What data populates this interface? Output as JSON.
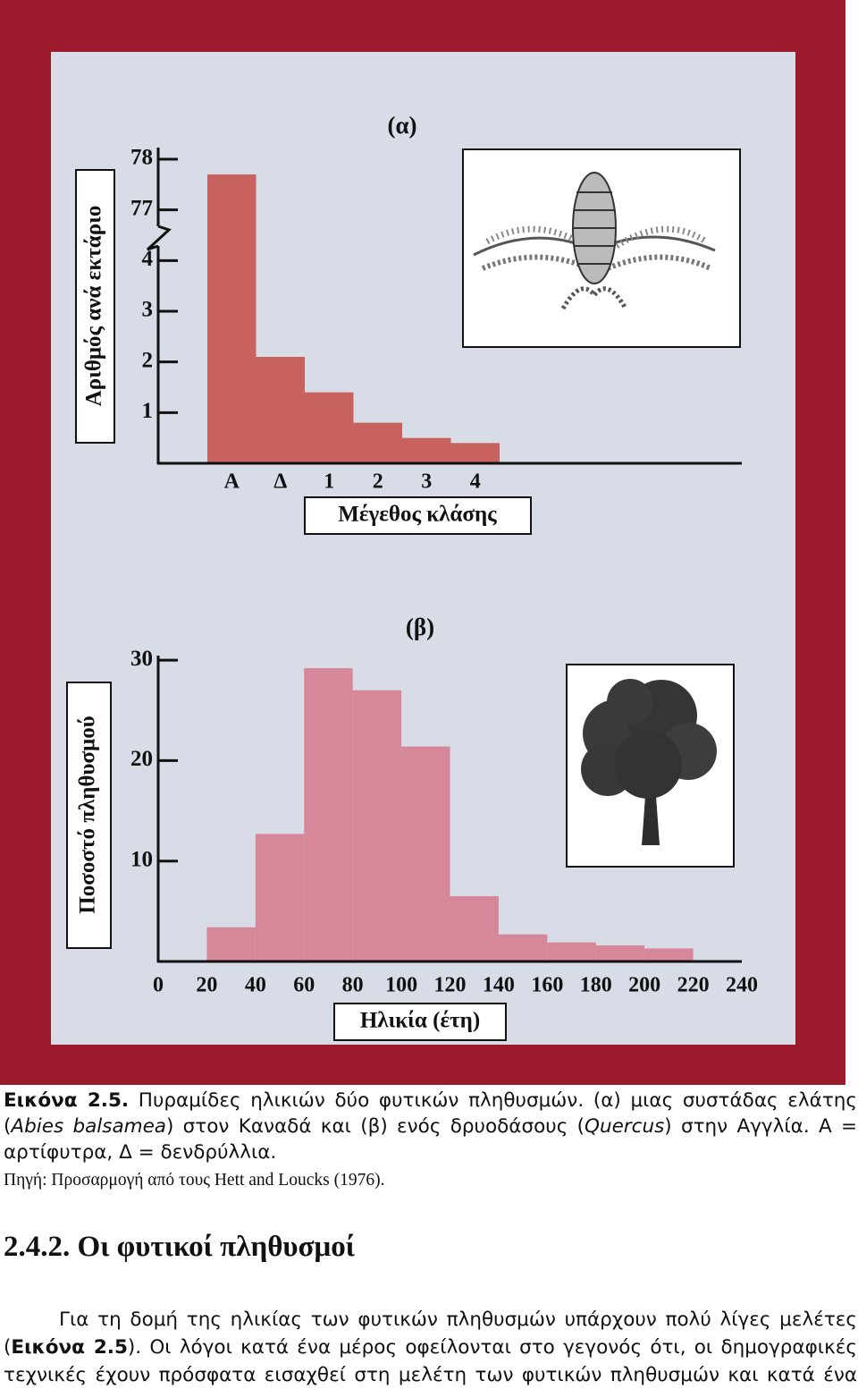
{
  "chart_data": [
    {
      "type": "bar",
      "title": "(α)",
      "y_label": "Αριθμός ανά εκτάριο",
      "x_label": "Μέγεθος κλάσης",
      "categories": [
        "Α",
        "Δ",
        "1",
        "2",
        "3",
        "4"
      ],
      "values": [
        77.7,
        2.1,
        1.4,
        0.8,
        0.5,
        0.4
      ],
      "color": "#c8625f",
      "ylim": [
        0,
        78
      ],
      "yticks": [
        1,
        2,
        3,
        4,
        77,
        78
      ],
      "axis_break": true,
      "grid": false
    },
    {
      "type": "histogram",
      "title": "(β)",
      "y_label": "Ποσοστό πληθυσμού",
      "x_label": "Ηλικία (έτη)",
      "bins": [
        20,
        40,
        60,
        80,
        100,
        120,
        140,
        160,
        180,
        200,
        220
      ],
      "values": [
        3.4,
        12.7,
        29.2,
        27.0,
        21.4,
        6.5,
        2.7,
        1.9,
        1.6,
        1.3
      ],
      "color": "#d6879a",
      "xlim": [
        0,
        240
      ],
      "xticks": [
        0,
        20,
        40,
        60,
        80,
        100,
        120,
        140,
        160,
        180,
        200,
        220,
        240
      ],
      "ylim": [
        0,
        30.5
      ],
      "yticks": [
        10,
        20,
        30
      ],
      "grid": false
    }
  ],
  "caption": {
    "label": "Εικόνα 2.5.",
    "text": [
      " Πυραμίδες ηλικιών δύο φυτικών πληθυσμών. (α) μιας συστάδας ελάτης (",
      "Abies balsamea",
      ") στον Καναδά και (β) ενός δρυοδάσους (",
      "Quercus",
      ") στην Αγγλία. Α = αρτίφυτρα, Δ = δενδρύλλια."
    ],
    "source": "Πηγή: Προσαρμογή από τους Hett and Loucks (1976)."
  },
  "section": {
    "heading": "2.4.2. Οι φυτικοί πληθυσμοί",
    "paragraph": [
      "Για τη δομή της ηλικίας των φυτικών πληθυσμών υπάρχουν πολύ λίγες μελέτες (",
      "Εικόνα 2.5",
      "). Οι λόγοι κατά ένα μέρος οφείλονται στο γεγονός ότι, οι δημογραφικές τεχνικές έχουν πρόσφατα εισαχθεί στη μελέτη των φυτικών πληθυσμών και κατά ένα"
    ]
  }
}
